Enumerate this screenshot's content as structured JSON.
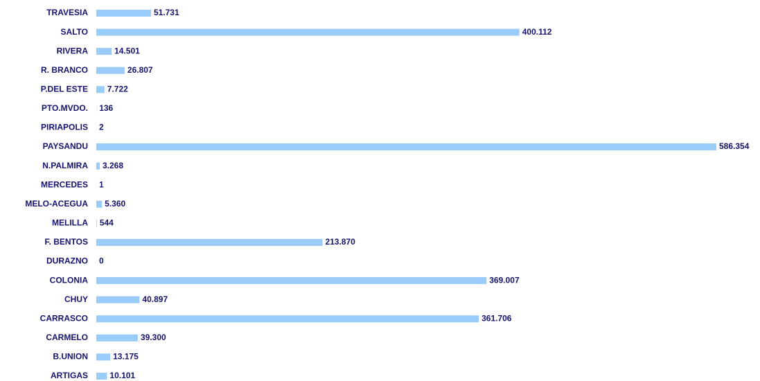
{
  "chart_data": {
    "type": "barh",
    "categories": [
      "TRAVESIA",
      "SALTO",
      "RIVERA",
      "R. BRANCO",
      "P.DEL ESTE",
      "PTO.MVDO.",
      "PIRIAPOLIS",
      "PAYSANDU",
      "N.PALMIRA",
      "MERCEDES",
      "MELO-ACEGUA",
      "MELILLA",
      "F. BENTOS",
      "DURAZNO",
      "COLONIA",
      "CHUY",
      "CARRASCO",
      "CARMELO",
      "B.UNION",
      "ARTIGAS"
    ],
    "values": [
      51731,
      400112,
      14501,
      26807,
      7722,
      136,
      2,
      586354,
      3268,
      1,
      5360,
      544,
      213870,
      0,
      369007,
      40897,
      361706,
      39300,
      13175,
      10101
    ],
    "value_labels": [
      "51.731",
      "400.112",
      "14.501",
      "26.807",
      "7.722",
      "136",
      "2",
      "586.354",
      "3.268",
      "1",
      "5.360",
      "544",
      "213.870",
      "0",
      "369.007",
      "40.897",
      "361.706",
      "39.300",
      "13.175",
      "10.101"
    ],
    "color": "#99ccf8"
  }
}
